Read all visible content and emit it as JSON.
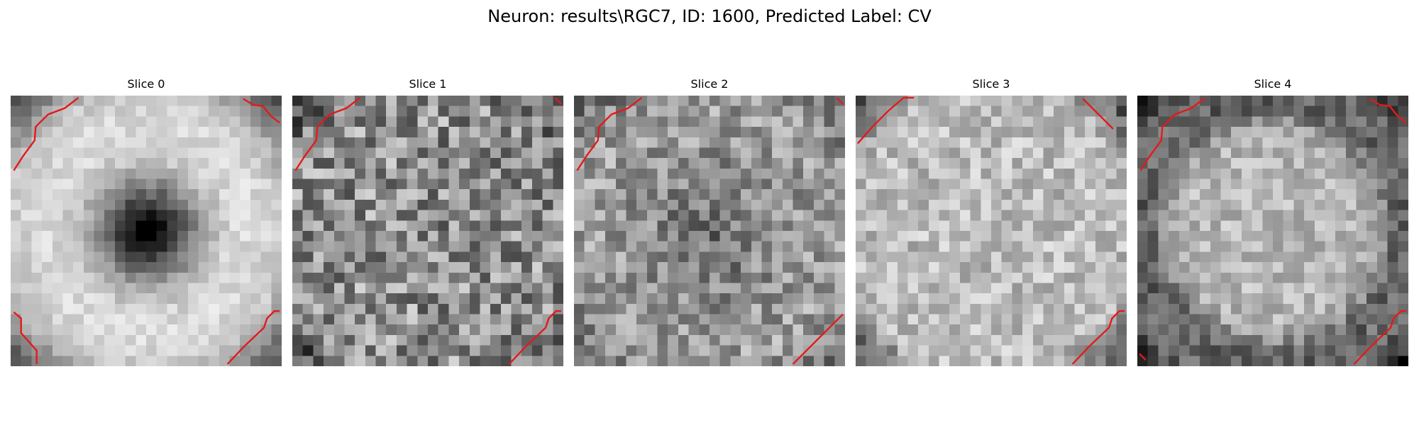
{
  "figure": {
    "title": "Neuron: results\\RGC7, ID: 1600, Predicted Label: CV"
  },
  "grid": {
    "cols": 26,
    "rows": 26
  },
  "outline_color": "#e31a1c",
  "slices": [
    {
      "title": "Slice 0",
      "pattern": "dark-center-ring",
      "seed": 11,
      "corners": [
        "top-left-curve",
        "top-right-curve",
        "bottom-left-curve",
        "bottom-right-curve"
      ]
    },
    {
      "title": "Slice 1",
      "pattern": "noisy",
      "seed": 23,
      "corners": [
        "top-left-curve",
        "top-right-tick",
        "bottom-right-curve"
      ]
    },
    {
      "title": "Slice 2",
      "pattern": "faint-center",
      "seed": 37,
      "corners": [
        "top-left-curve",
        "top-right-tick",
        "bottom-right-line"
      ]
    },
    {
      "title": "Slice 3",
      "pattern": "bright-disc",
      "seed": 51,
      "corners": [
        "top-left-line",
        "top-right-line",
        "bottom-right-curve"
      ]
    },
    {
      "title": "Slice 4",
      "pattern": "dark-corner-ring",
      "seed": 67,
      "corners": [
        "top-left-curve",
        "top-right-curve",
        "bottom-left-tick",
        "bottom-right-curve"
      ]
    }
  ]
}
